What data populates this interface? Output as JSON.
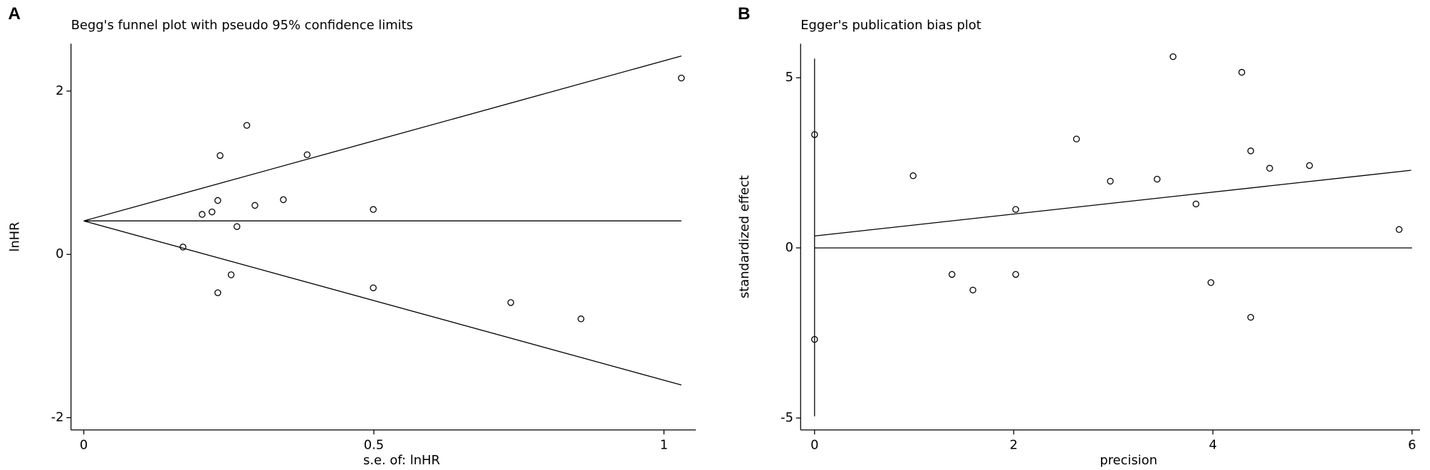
{
  "chart_data": [
    {
      "type": "scatter",
      "panel_label": "A",
      "title": "Begg's funnel plot with pseudo 95% confidence limits",
      "x_label": "s.e. of: lnHR",
      "y_label": "lnHR",
      "x": [
        0.171,
        0.204,
        0.221,
        0.231,
        0.235,
        0.231,
        0.254,
        0.264,
        0.281,
        0.295,
        0.344,
        0.385,
        0.499,
        0.499,
        0.736,
        0.857,
        1.03
      ],
      "values": [
        0.09,
        0.49,
        0.52,
        0.66,
        1.21,
        -0.47,
        -0.25,
        0.34,
        1.58,
        0.6,
        0.67,
        1.22,
        0.55,
        -0.41,
        -0.59,
        -0.79,
        2.16
      ],
      "xlim": [
        -0.022,
        1.055
      ],
      "ylim": [
        -2.15,
        2.58
      ],
      "xticks": [
        0,
        0.5,
        1
      ],
      "yticks": [
        -2,
        0,
        2
      ],
      "lines": [
        {
          "x": [
            0,
            1.03
          ],
          "values": [
            0.41,
            0.41
          ]
        },
        {
          "x": [
            0,
            1.03
          ],
          "values": [
            0.41,
            2.43
          ]
        },
        {
          "x": [
            0,
            1.03
          ],
          "values": [
            0.41,
            -1.6
          ]
        }
      ]
    },
    {
      "type": "scatter",
      "panel_label": "B",
      "title": "Egger's publication bias plot",
      "x_label": "precision",
      "y_label": "standardized effect",
      "x": [
        0,
        0,
        0.99,
        1.38,
        1.59,
        2.02,
        2.02,
        2.63,
        2.97,
        3.44,
        3.6,
        3.83,
        3.98,
        4.29,
        4.38,
        4.38,
        4.57,
        4.97,
        5.87
      ],
      "values": [
        3.33,
        -2.69,
        2.12,
        -0.78,
        -1.24,
        1.13,
        -0.78,
        3.2,
        1.96,
        2.02,
        5.62,
        1.29,
        -1.02,
        5.16,
        2.85,
        -2.04,
        2.34,
        2.42,
        0.54
      ],
      "xlim": [
        -0.14,
        6.08
      ],
      "ylim": [
        -5.35,
        6.0
      ],
      "xticks": [
        0,
        2,
        4,
        6
      ],
      "yticks": [
        -5,
        0,
        5
      ],
      "lines": [
        {
          "x": [
            0,
            0
          ],
          "values": [
            5.56,
            -4.95
          ]
        },
        {
          "x": [
            0,
            5.99
          ],
          "values": [
            0.35,
            2.28
          ]
        },
        {
          "x": [
            0,
            6
          ],
          "values": [
            0,
            0
          ]
        }
      ]
    }
  ]
}
